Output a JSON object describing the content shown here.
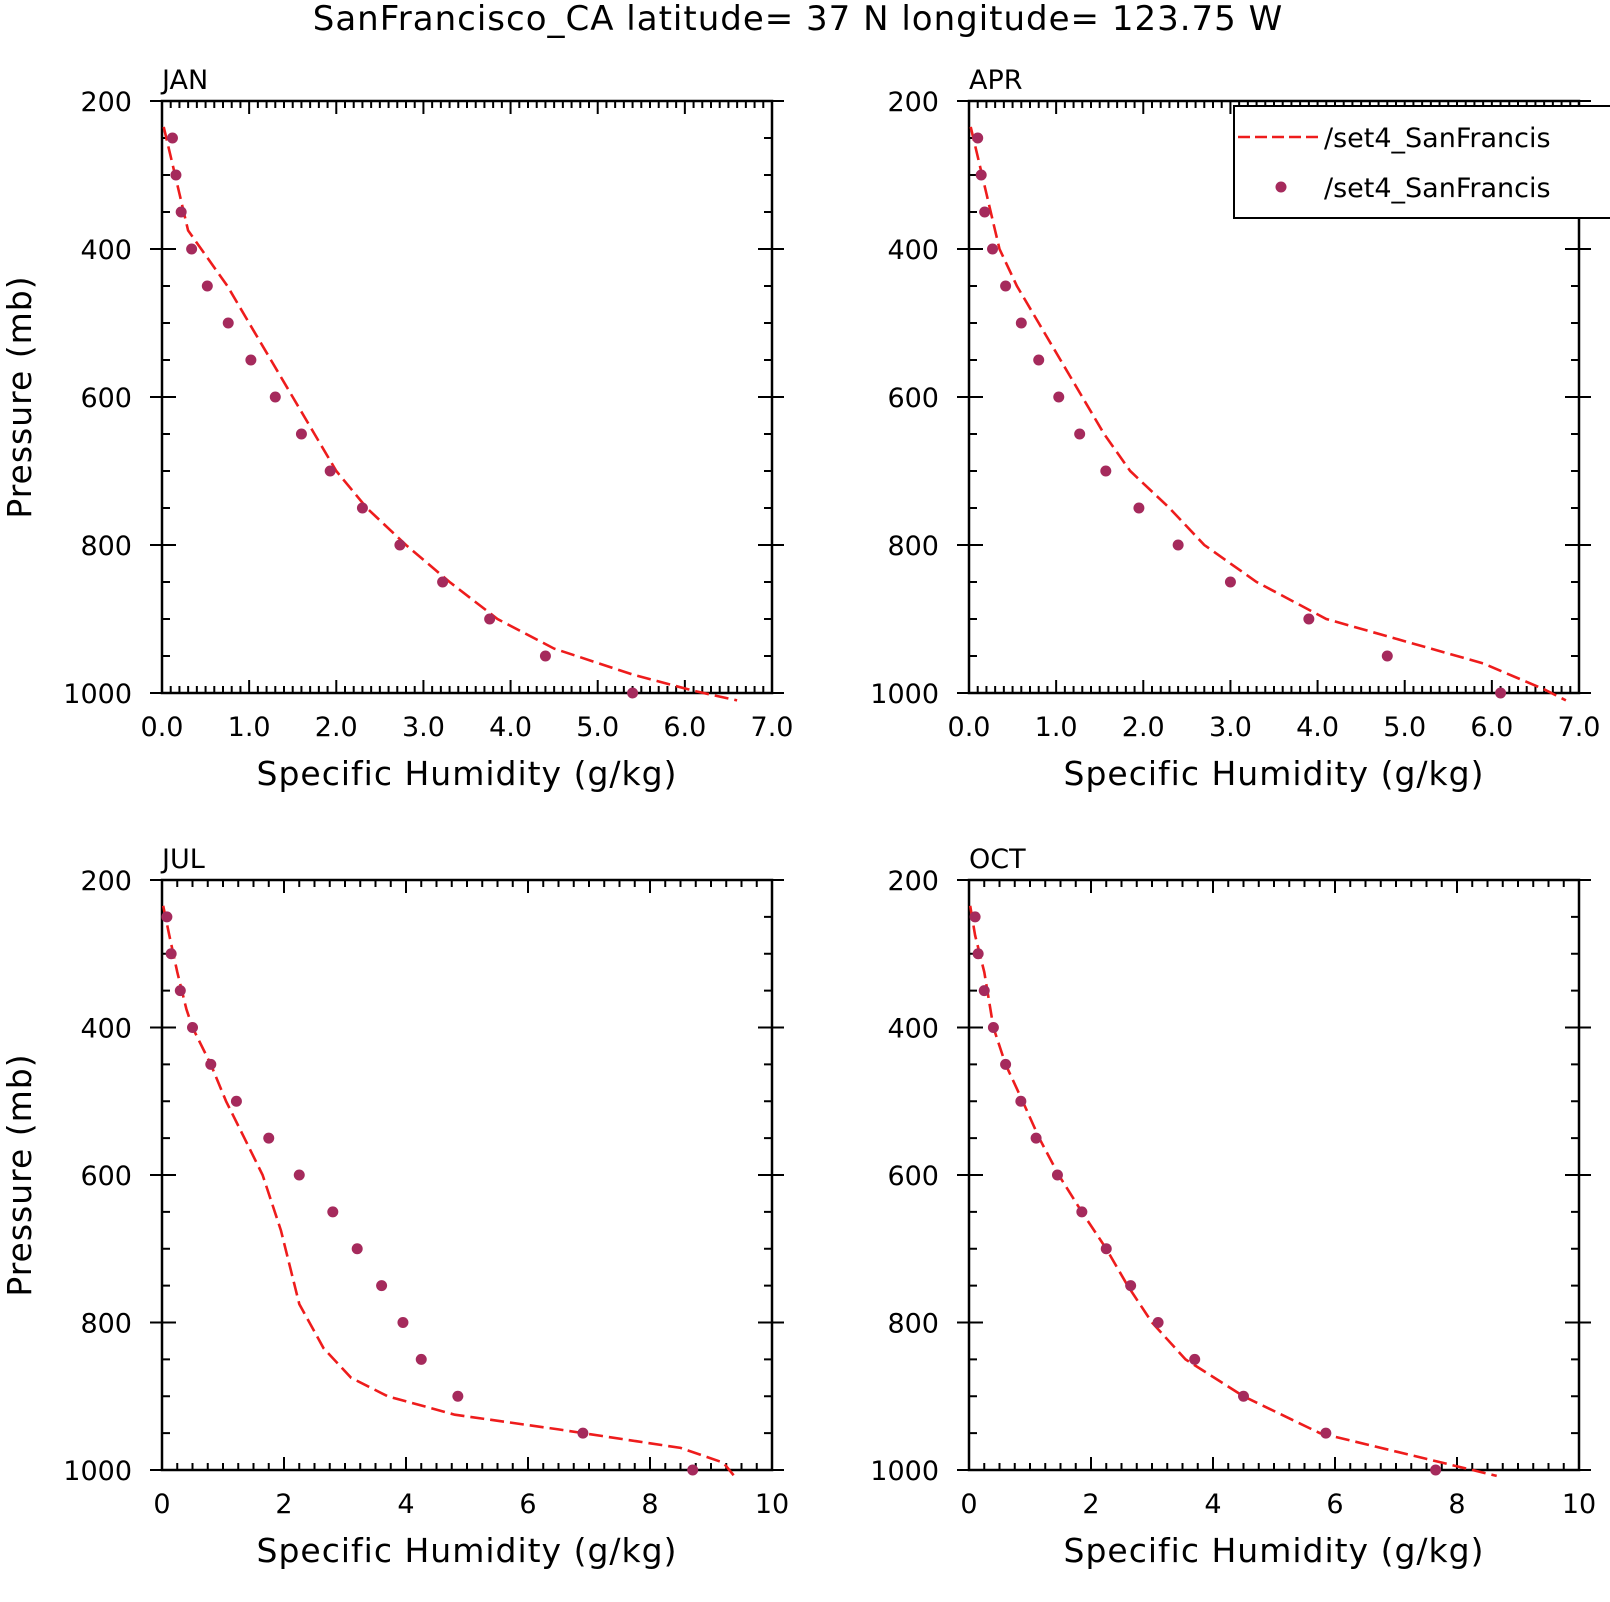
{
  "title": "SanFrancisco_CA  latitude= 37 N longitude= 123.75 W",
  "colors": {
    "model_line": "#ee1c1c",
    "obs_points": "#a52a5c",
    "axes": "#000000"
  },
  "legend": {
    "placement": "top-right of APR panel",
    "entries": [
      {
        "label": "/set4_SanFrancis",
        "style": "dashed-line"
      },
      {
        "label": "/set4_SanFrancis",
        "style": "points"
      }
    ]
  },
  "chart_data": [
    {
      "type": "line",
      "label": "JAN",
      "xlabel": "Specific Humidity (g/kg)",
      "ylabel": "Pressure (mb)",
      "xlim": [
        0,
        7
      ],
      "ylim": [
        200,
        1000
      ],
      "y_inverted": true,
      "xticks": [
        "0.0",
        "1.0",
        "2.0",
        "3.0",
        "4.0",
        "5.0",
        "6.0",
        "7.0"
      ],
      "yticks": [
        "200",
        "400",
        "600",
        "800",
        "1000"
      ],
      "series": [
        {
          "style": "dashed-line",
          "points": [
            [
              0.02,
              235
            ],
            [
              0.1,
              275
            ],
            [
              0.2,
              325
            ],
            [
              0.3,
              375
            ],
            [
              0.45,
              400
            ],
            [
              0.75,
              450
            ],
            [
              1.0,
              500
            ],
            [
              1.25,
              550
            ],
            [
              1.5,
              600
            ],
            [
              1.75,
              650
            ],
            [
              2.0,
              700
            ],
            [
              2.35,
              750
            ],
            [
              2.8,
              800
            ],
            [
              3.3,
              850
            ],
            [
              3.85,
              900
            ],
            [
              4.5,
              940
            ],
            [
              5.4,
              975
            ],
            [
              6.1,
              997
            ],
            [
              6.6,
              1010
            ]
          ]
        },
        {
          "style": "points",
          "points": [
            [
              0.12,
              250
            ],
            [
              0.16,
              300
            ],
            [
              0.22,
              350
            ],
            [
              0.34,
              400
            ],
            [
              0.52,
              450
            ],
            [
              0.76,
              500
            ],
            [
              1.02,
              550
            ],
            [
              1.3,
              600
            ],
            [
              1.6,
              650
            ],
            [
              1.93,
              700
            ],
            [
              2.3,
              750
            ],
            [
              2.73,
              800
            ],
            [
              3.22,
              850
            ],
            [
              3.76,
              900
            ],
            [
              4.4,
              950
            ],
            [
              5.4,
              1000
            ]
          ]
        }
      ]
    },
    {
      "type": "line",
      "label": "APR",
      "xlabel": "Specific Humidity (g/kg)",
      "ylabel": "",
      "xlim": [
        0,
        7
      ],
      "ylim": [
        200,
        1000
      ],
      "y_inverted": true,
      "xticks": [
        "0.0",
        "1.0",
        "2.0",
        "3.0",
        "4.0",
        "5.0",
        "6.0",
        "7.0"
      ],
      "yticks": [
        "200",
        "400",
        "600",
        "800",
        "1000"
      ],
      "series": [
        {
          "style": "dashed-line",
          "points": [
            [
              0.02,
              235
            ],
            [
              0.1,
              275
            ],
            [
              0.2,
              325
            ],
            [
              0.3,
              375
            ],
            [
              0.35,
              400
            ],
            [
              0.55,
              450
            ],
            [
              0.8,
              500
            ],
            [
              1.05,
              550
            ],
            [
              1.3,
              600
            ],
            [
              1.55,
              650
            ],
            [
              1.85,
              700
            ],
            [
              2.3,
              750
            ],
            [
              2.7,
              800
            ],
            [
              3.3,
              850
            ],
            [
              4.1,
              900
            ],
            [
              5.0,
              930
            ],
            [
              5.9,
              960
            ],
            [
              6.6,
              995
            ],
            [
              6.85,
              1010
            ]
          ]
        },
        {
          "style": "points",
          "points": [
            [
              0.1,
              250
            ],
            [
              0.14,
              300
            ],
            [
              0.18,
              350
            ],
            [
              0.27,
              400
            ],
            [
              0.42,
              450
            ],
            [
              0.6,
              500
            ],
            [
              0.8,
              550
            ],
            [
              1.03,
              600
            ],
            [
              1.27,
              650
            ],
            [
              1.57,
              700
            ],
            [
              1.95,
              750
            ],
            [
              2.4,
              800
            ],
            [
              3.0,
              850
            ],
            [
              3.9,
              900
            ],
            [
              4.8,
              950
            ],
            [
              6.1,
              1000
            ]
          ]
        }
      ]
    },
    {
      "type": "line",
      "label": "JUL",
      "xlabel": "Specific Humidity (g/kg)",
      "ylabel": "Pressure (mb)",
      "xlim": [
        0,
        10
      ],
      "ylim": [
        200,
        1000
      ],
      "y_inverted": true,
      "xticks": [
        "0",
        "2",
        "4",
        "6",
        "8",
        "10"
      ],
      "yticks": [
        "200",
        "400",
        "600",
        "800",
        "1000"
      ],
      "series": [
        {
          "style": "dashed-line",
          "points": [
            [
              0.02,
              235
            ],
            [
              0.12,
              275
            ],
            [
              0.25,
              325
            ],
            [
              0.4,
              375
            ],
            [
              0.5,
              400
            ],
            [
              0.8,
              450
            ],
            [
              1.05,
              500
            ],
            [
              1.35,
              550
            ],
            [
              1.65,
              600
            ],
            [
              1.95,
              675
            ],
            [
              2.25,
              775
            ],
            [
              2.65,
              835
            ],
            [
              3.1,
              875
            ],
            [
              3.7,
              900
            ],
            [
              4.8,
              925
            ],
            [
              6.5,
              945
            ],
            [
              8.5,
              970
            ],
            [
              9.2,
              990
            ],
            [
              9.4,
              1010
            ]
          ]
        },
        {
          "style": "points",
          "points": [
            [
              0.08,
              250
            ],
            [
              0.15,
              300
            ],
            [
              0.3,
              350
            ],
            [
              0.5,
              400
            ],
            [
              0.8,
              450
            ],
            [
              1.22,
              500
            ],
            [
              1.75,
              550
            ],
            [
              2.25,
              600
            ],
            [
              2.8,
              650
            ],
            [
              3.2,
              700
            ],
            [
              3.6,
              750
            ],
            [
              3.95,
              800
            ],
            [
              4.25,
              850
            ],
            [
              4.85,
              900
            ],
            [
              6.9,
              950
            ],
            [
              8.7,
              1000
            ]
          ]
        }
      ]
    },
    {
      "type": "line",
      "label": "OCT",
      "xlabel": "Specific Humidity (g/kg)",
      "ylabel": "",
      "xlim": [
        0,
        10
      ],
      "ylim": [
        200,
        1000
      ],
      "y_inverted": true,
      "xticks": [
        "0",
        "2",
        "4",
        "6",
        "8",
        "10"
      ],
      "yticks": [
        "200",
        "400",
        "600",
        "800",
        "1000"
      ],
      "series": [
        {
          "style": "dashed-line",
          "points": [
            [
              0.02,
              235
            ],
            [
              0.1,
              275
            ],
            [
              0.25,
              325
            ],
            [
              0.35,
              375
            ],
            [
              0.4,
              400
            ],
            [
              0.6,
              450
            ],
            [
              0.88,
              500
            ],
            [
              1.15,
              550
            ],
            [
              1.47,
              600
            ],
            [
              1.85,
              650
            ],
            [
              2.25,
              700
            ],
            [
              2.6,
              750
            ],
            [
              3.0,
              800
            ],
            [
              3.55,
              850
            ],
            [
              4.5,
              900
            ],
            [
              5.75,
              950
            ],
            [
              7.5,
              985
            ],
            [
              8.65,
              1008
            ]
          ]
        },
        {
          "style": "points",
          "points": [
            [
              0.1,
              250
            ],
            [
              0.15,
              300
            ],
            [
              0.25,
              350
            ],
            [
              0.4,
              400
            ],
            [
              0.6,
              450
            ],
            [
              0.85,
              500
            ],
            [
              1.1,
              550
            ],
            [
              1.45,
              600
            ],
            [
              1.85,
              650
            ],
            [
              2.25,
              700
            ],
            [
              2.65,
              750
            ],
            [
              3.1,
              800
            ],
            [
              3.7,
              850
            ],
            [
              4.5,
              900
            ],
            [
              5.85,
              950
            ],
            [
              7.65,
              1000
            ]
          ]
        }
      ]
    }
  ]
}
